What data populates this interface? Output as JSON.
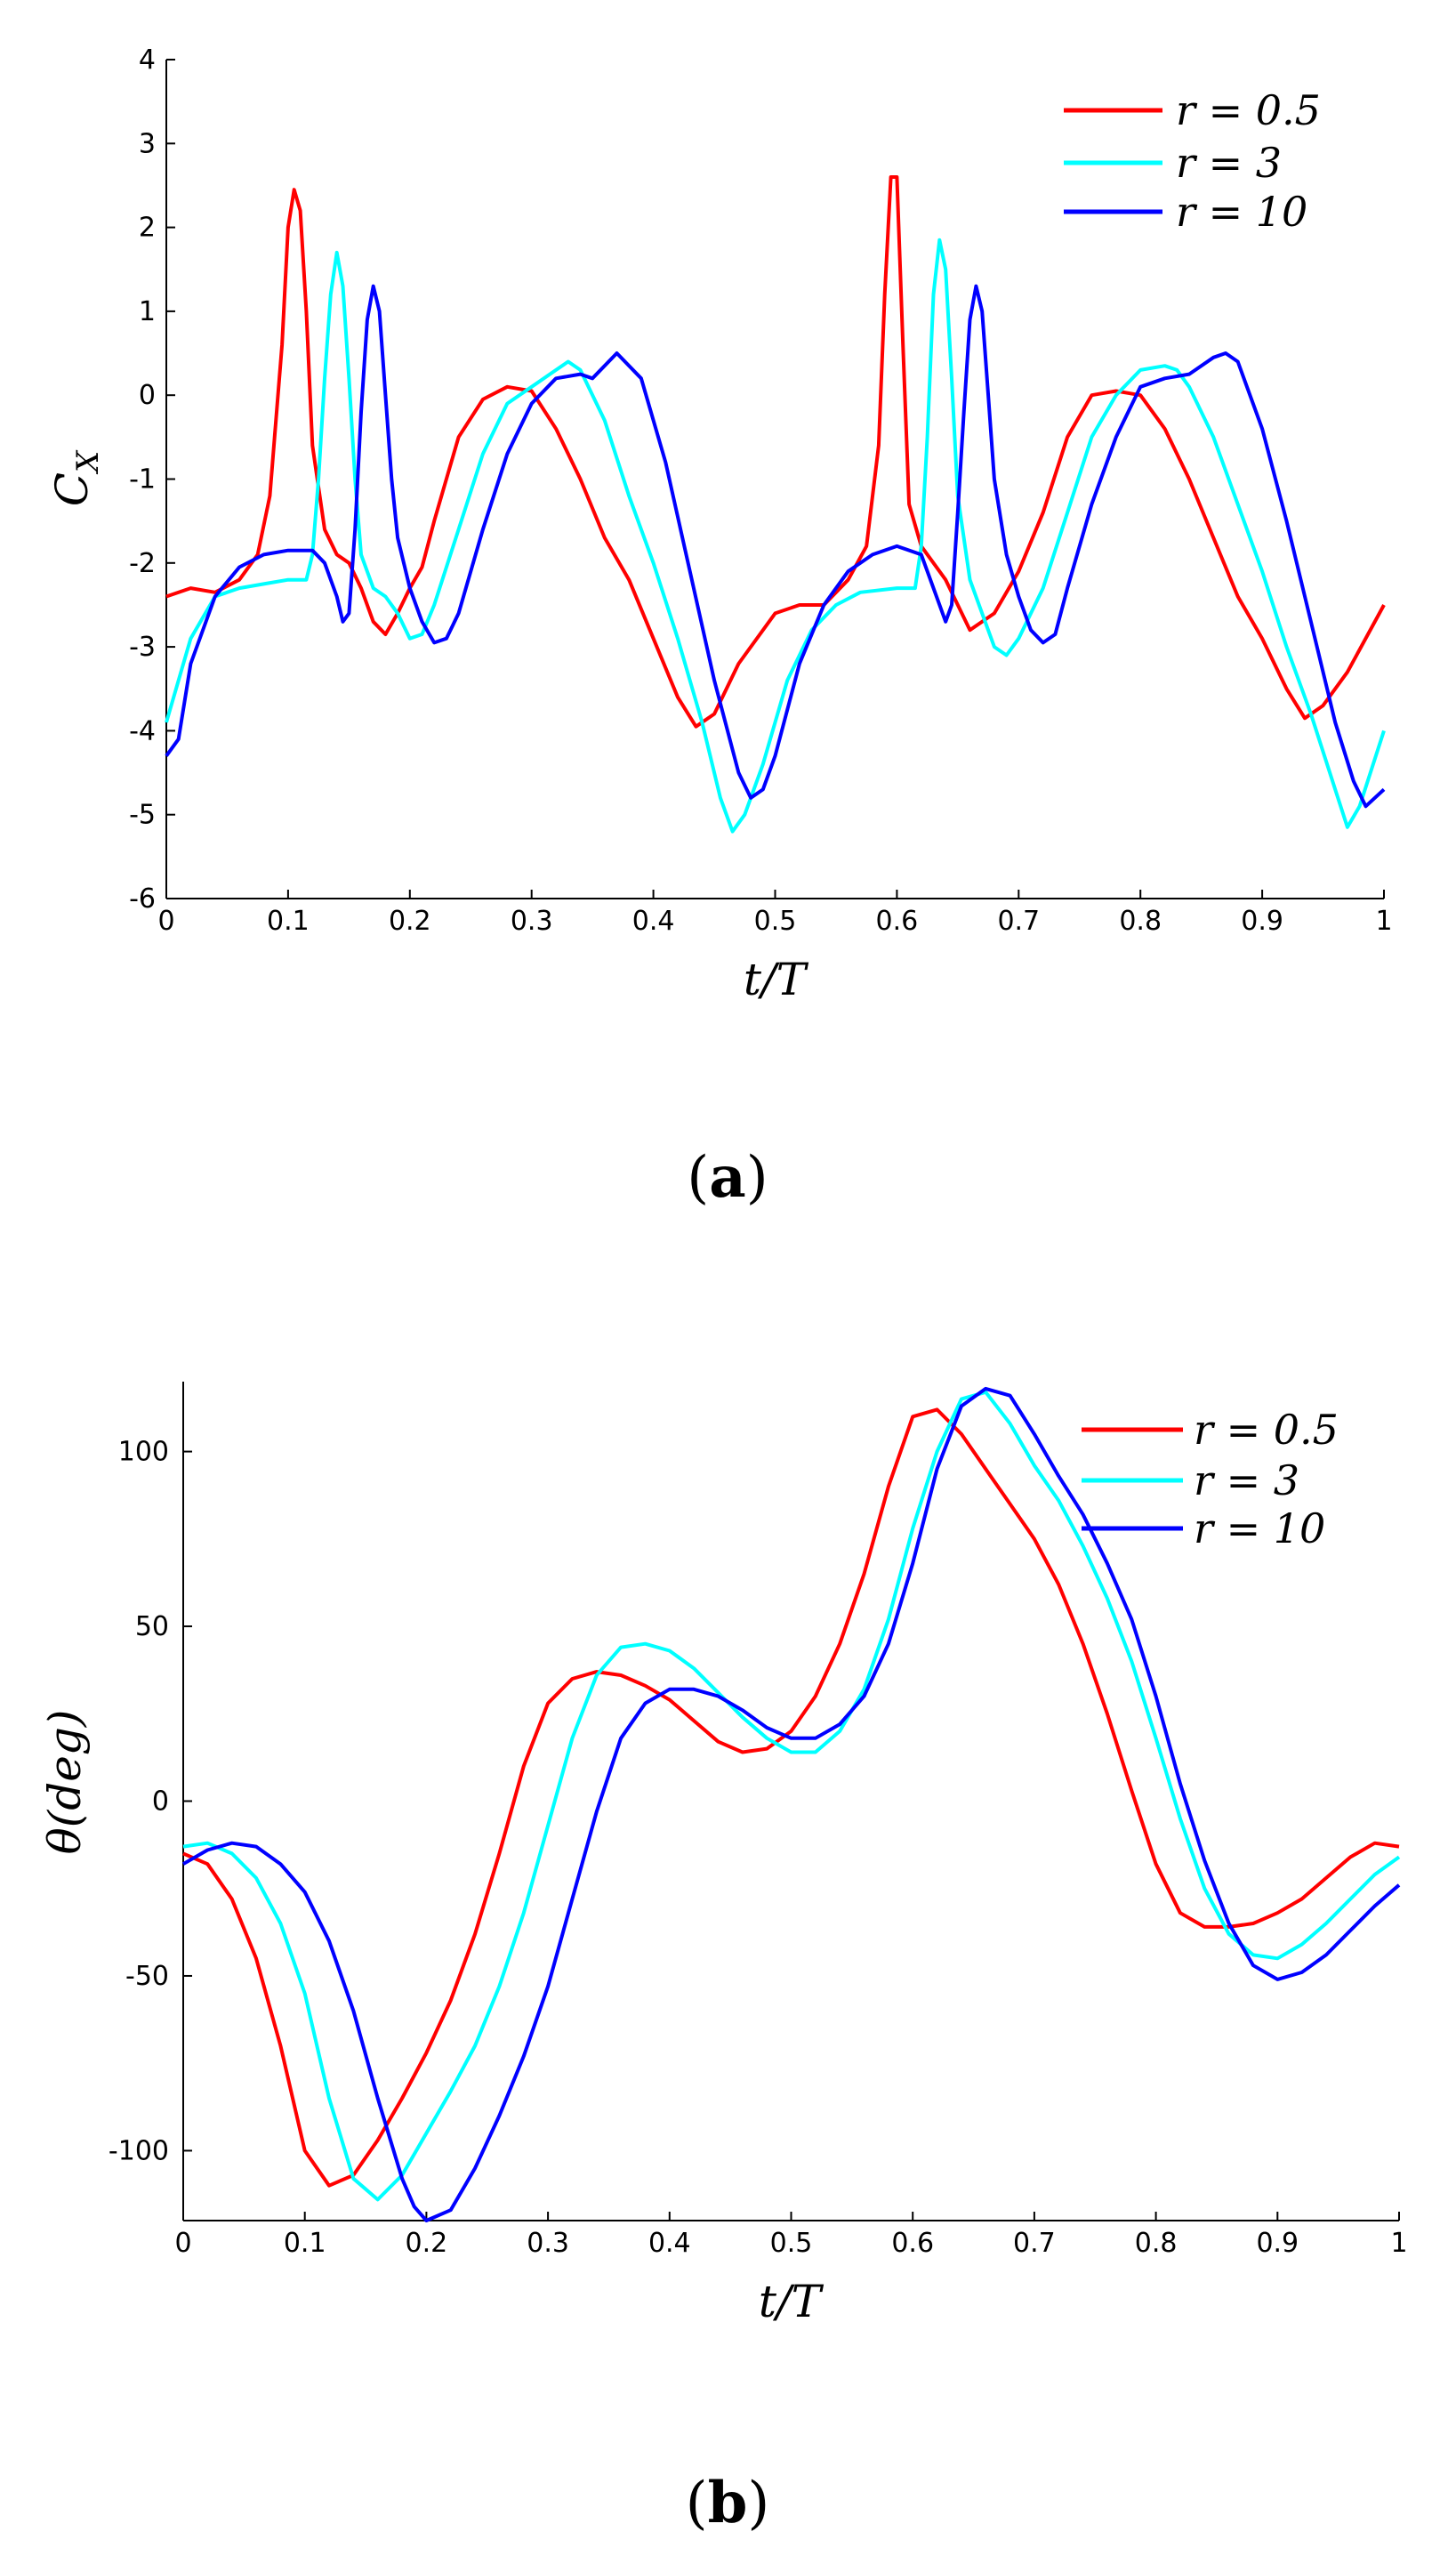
{
  "colors": {
    "r_0_5": "#ff0000",
    "r_3": "#00ffff",
    "r_10": "#0000ff"
  },
  "figures": {
    "a": {
      "caption_open": "(",
      "caption_letter": "a",
      "caption_close": ")"
    },
    "b": {
      "caption_open": "(",
      "caption_letter": "b",
      "caption_close": ")"
    }
  },
  "chart_data": [
    {
      "type": "line",
      "xlabel": "t/T",
      "ylabel": "C_X",
      "xlim": [
        0,
        1
      ],
      "ylim": [
        -6,
        4
      ],
      "xticks": [
        "0",
        "0.1",
        "0.2",
        "0.3",
        "0.4",
        "0.5",
        "0.6",
        "0.7",
        "0.8",
        "0.9",
        "1"
      ],
      "yticks": [
        "-6",
        "-5",
        "-4",
        "-3",
        "-2",
        "-1",
        "0",
        "1",
        "2",
        "3",
        "4"
      ],
      "grid": false,
      "legend_position": "top-right",
      "series": [
        {
          "name": "r = 0.5",
          "color": "#ff0000",
          "x": [
            0,
            0.02,
            0.04,
            0.06,
            0.075,
            0.085,
            0.095,
            0.1,
            0.105,
            0.11,
            0.115,
            0.12,
            0.13,
            0.14,
            0.15,
            0.16,
            0.17,
            0.18,
            0.19,
            0.2,
            0.21,
            0.22,
            0.24,
            0.26,
            0.28,
            0.3,
            0.32,
            0.34,
            0.36,
            0.38,
            0.4,
            0.42,
            0.435,
            0.45,
            0.47,
            0.5,
            0.52,
            0.54,
            0.56,
            0.575,
            0.585,
            0.59,
            0.595,
            0.6,
            0.605,
            0.61,
            0.62,
            0.64,
            0.66,
            0.68,
            0.7,
            0.72,
            0.74,
            0.76,
            0.78,
            0.8,
            0.82,
            0.84,
            0.86,
            0.88,
            0.9,
            0.92,
            0.935,
            0.95,
            0.97,
            1.0
          ],
          "y": [
            -2.4,
            -2.3,
            -2.35,
            -2.2,
            -1.9,
            -1.2,
            0.6,
            2.0,
            2.45,
            2.2,
            1.0,
            -0.6,
            -1.6,
            -1.9,
            -2.0,
            -2.3,
            -2.7,
            -2.85,
            -2.6,
            -2.3,
            -2.05,
            -1.5,
            -0.5,
            -0.05,
            0.1,
            0.05,
            -0.4,
            -1.0,
            -1.7,
            -2.2,
            -2.9,
            -3.6,
            -3.95,
            -3.8,
            -3.2,
            -2.6,
            -2.5,
            -2.5,
            -2.2,
            -1.8,
            -0.6,
            1.2,
            2.6,
            2.6,
            0.6,
            -1.3,
            -1.8,
            -2.2,
            -2.8,
            -2.6,
            -2.1,
            -1.4,
            -0.5,
            0.0,
            0.05,
            0.0,
            -0.4,
            -1.0,
            -1.7,
            -2.4,
            -2.9,
            -3.5,
            -3.85,
            -3.7,
            -3.3,
            -2.5
          ]
        },
        {
          "name": "r = 3",
          "color": "#00ffff",
          "x": [
            0,
            0.02,
            0.04,
            0.06,
            0.08,
            0.1,
            0.115,
            0.12,
            0.125,
            0.13,
            0.135,
            0.14,
            0.145,
            0.15,
            0.155,
            0.16,
            0.17,
            0.18,
            0.19,
            0.2,
            0.21,
            0.22,
            0.24,
            0.26,
            0.28,
            0.3,
            0.32,
            0.33,
            0.34,
            0.36,
            0.38,
            0.4,
            0.42,
            0.44,
            0.455,
            0.465,
            0.475,
            0.49,
            0.51,
            0.53,
            0.55,
            0.57,
            0.6,
            0.615,
            0.62,
            0.625,
            0.63,
            0.635,
            0.64,
            0.645,
            0.65,
            0.66,
            0.67,
            0.68,
            0.69,
            0.7,
            0.72,
            0.74,
            0.76,
            0.78,
            0.8,
            0.82,
            0.83,
            0.84,
            0.86,
            0.88,
            0.9,
            0.92,
            0.94,
            0.96,
            0.97,
            0.98,
            1.0
          ],
          "y": [
            -3.9,
            -2.9,
            -2.4,
            -2.3,
            -2.25,
            -2.2,
            -2.2,
            -1.9,
            -1.0,
            0.2,
            1.2,
            1.7,
            1.3,
            0.2,
            -1.0,
            -1.9,
            -2.3,
            -2.4,
            -2.6,
            -2.9,
            -2.85,
            -2.5,
            -1.6,
            -0.7,
            -0.1,
            0.1,
            0.3,
            0.4,
            0.3,
            -0.3,
            -1.2,
            -2.0,
            -2.9,
            -3.9,
            -4.8,
            -5.2,
            -5.0,
            -4.4,
            -3.4,
            -2.8,
            -2.5,
            -2.35,
            -2.3,
            -2.3,
            -1.8,
            -0.5,
            1.2,
            1.85,
            1.5,
            0.2,
            -1.2,
            -2.2,
            -2.6,
            -3.0,
            -3.1,
            -2.9,
            -2.3,
            -1.4,
            -0.5,
            0.0,
            0.3,
            0.35,
            0.3,
            0.1,
            -0.5,
            -1.3,
            -2.1,
            -3.0,
            -3.8,
            -4.7,
            -5.15,
            -4.9,
            -4.0
          ]
        },
        {
          "name": "r = 10",
          "color": "#0000ff",
          "x": [
            0,
            0.01,
            0.02,
            0.04,
            0.06,
            0.08,
            0.1,
            0.12,
            0.13,
            0.14,
            0.145,
            0.15,
            0.155,
            0.16,
            0.165,
            0.17,
            0.175,
            0.18,
            0.185,
            0.19,
            0.2,
            0.21,
            0.22,
            0.23,
            0.24,
            0.26,
            0.28,
            0.3,
            0.32,
            0.34,
            0.35,
            0.37,
            0.39,
            0.41,
            0.43,
            0.45,
            0.47,
            0.48,
            0.49,
            0.5,
            0.52,
            0.54,
            0.56,
            0.58,
            0.6,
            0.62,
            0.63,
            0.64,
            0.645,
            0.65,
            0.655,
            0.66,
            0.665,
            0.67,
            0.675,
            0.68,
            0.69,
            0.7,
            0.71,
            0.72,
            0.73,
            0.74,
            0.76,
            0.78,
            0.8,
            0.82,
            0.84,
            0.86,
            0.87,
            0.88,
            0.9,
            0.92,
            0.94,
            0.96,
            0.975,
            0.985,
            1.0
          ],
          "y": [
            -4.3,
            -4.1,
            -3.2,
            -2.4,
            -2.05,
            -1.9,
            -1.85,
            -1.85,
            -2.0,
            -2.4,
            -2.7,
            -2.6,
            -1.6,
            -0.2,
            0.9,
            1.3,
            1.0,
            0.0,
            -1.0,
            -1.7,
            -2.3,
            -2.7,
            -2.95,
            -2.9,
            -2.6,
            -1.6,
            -0.7,
            -0.1,
            0.2,
            0.25,
            0.2,
            0.5,
            0.2,
            -0.8,
            -2.1,
            -3.4,
            -4.5,
            -4.8,
            -4.7,
            -4.3,
            -3.2,
            -2.5,
            -2.1,
            -1.9,
            -1.8,
            -1.9,
            -2.3,
            -2.7,
            -2.5,
            -1.4,
            -0.2,
            0.9,
            1.3,
            1.0,
            0.0,
            -1.0,
            -1.9,
            -2.4,
            -2.8,
            -2.95,
            -2.85,
            -2.3,
            -1.3,
            -0.5,
            0.1,
            0.2,
            0.25,
            0.45,
            0.5,
            0.4,
            -0.4,
            -1.5,
            -2.7,
            -3.9,
            -4.6,
            -4.9,
            -4.7
          ]
        }
      ]
    },
    {
      "type": "line",
      "xlabel": "t/T",
      "ylabel": "θ(deg)",
      "xlim": [
        0,
        1
      ],
      "ylim": [
        -120,
        120
      ],
      "xticks": [
        "0",
        "0.1",
        "0.2",
        "0.3",
        "0.4",
        "0.5",
        "0.6",
        "0.7",
        "0.8",
        "0.9",
        "1"
      ],
      "yticks": [
        "-100",
        "-50",
        "0",
        "50",
        "100"
      ],
      "grid": false,
      "legend_position": "top-right",
      "series": [
        {
          "name": "r = 0.5",
          "color": "#ff0000",
          "x": [
            0,
            0.02,
            0.04,
            0.06,
            0.08,
            0.1,
            0.12,
            0.14,
            0.16,
            0.18,
            0.2,
            0.22,
            0.24,
            0.26,
            0.28,
            0.3,
            0.32,
            0.34,
            0.36,
            0.38,
            0.4,
            0.42,
            0.44,
            0.46,
            0.48,
            0.5,
            0.52,
            0.54,
            0.56,
            0.58,
            0.6,
            0.62,
            0.64,
            0.66,
            0.68,
            0.7,
            0.72,
            0.74,
            0.76,
            0.78,
            0.8,
            0.82,
            0.84,
            0.86,
            0.88,
            0.9,
            0.92,
            0.94,
            0.96,
            0.98,
            1.0
          ],
          "y": [
            -15,
            -18,
            -28,
            -45,
            -70,
            -100,
            -110,
            -107,
            -97,
            -85,
            -72,
            -57,
            -38,
            -15,
            10,
            28,
            35,
            37,
            36,
            33,
            29,
            23,
            17,
            14,
            15,
            20,
            30,
            45,
            65,
            90,
            110,
            112,
            105,
            95,
            85,
            75,
            62,
            45,
            25,
            3,
            -18,
            -32,
            -36,
            -36,
            -35,
            -32,
            -28,
            -22,
            -16,
            -12,
            -13
          ]
        },
        {
          "name": "r = 3",
          "color": "#00ffff",
          "x": [
            0,
            0.02,
            0.04,
            0.06,
            0.08,
            0.1,
            0.12,
            0.14,
            0.16,
            0.18,
            0.2,
            0.22,
            0.24,
            0.26,
            0.28,
            0.3,
            0.32,
            0.34,
            0.36,
            0.38,
            0.4,
            0.42,
            0.44,
            0.46,
            0.48,
            0.5,
            0.52,
            0.54,
            0.56,
            0.58,
            0.6,
            0.62,
            0.64,
            0.66,
            0.68,
            0.7,
            0.72,
            0.74,
            0.76,
            0.78,
            0.8,
            0.82,
            0.84,
            0.86,
            0.88,
            0.9,
            0.92,
            0.94,
            0.96,
            0.98,
            1.0
          ],
          "y": [
            -13,
            -12,
            -15,
            -22,
            -35,
            -55,
            -85,
            -108,
            -114,
            -107,
            -95,
            -83,
            -70,
            -53,
            -32,
            -7,
            18,
            36,
            44,
            45,
            43,
            38,
            31,
            24,
            18,
            14,
            14,
            20,
            32,
            52,
            78,
            100,
            115,
            117,
            108,
            96,
            86,
            73,
            58,
            40,
            18,
            -5,
            -25,
            -38,
            -44,
            -45,
            -41,
            -35,
            -28,
            -21,
            -16
          ]
        },
        {
          "name": "r = 10",
          "color": "#0000ff",
          "x": [
            0,
            0.02,
            0.04,
            0.06,
            0.08,
            0.1,
            0.12,
            0.14,
            0.16,
            0.18,
            0.19,
            0.2,
            0.22,
            0.24,
            0.26,
            0.28,
            0.3,
            0.32,
            0.34,
            0.36,
            0.38,
            0.4,
            0.42,
            0.44,
            0.46,
            0.48,
            0.5,
            0.52,
            0.54,
            0.56,
            0.58,
            0.6,
            0.62,
            0.64,
            0.66,
            0.68,
            0.7,
            0.72,
            0.74,
            0.76,
            0.78,
            0.8,
            0.82,
            0.84,
            0.86,
            0.88,
            0.9,
            0.92,
            0.94,
            0.96,
            0.98,
            1.0
          ],
          "y": [
            -18,
            -14,
            -12,
            -13,
            -18,
            -26,
            -40,
            -60,
            -85,
            -108,
            -116,
            -120,
            -117,
            -105,
            -90,
            -73,
            -53,
            -28,
            -3,
            18,
            28,
            32,
            32,
            30,
            26,
            21,
            18,
            18,
            22,
            30,
            45,
            68,
            95,
            113,
            118,
            116,
            105,
            93,
            82,
            68,
            52,
            30,
            5,
            -17,
            -35,
            -47,
            -51,
            -49,
            -44,
            -37,
            -30,
            -24
          ]
        }
      ]
    }
  ]
}
